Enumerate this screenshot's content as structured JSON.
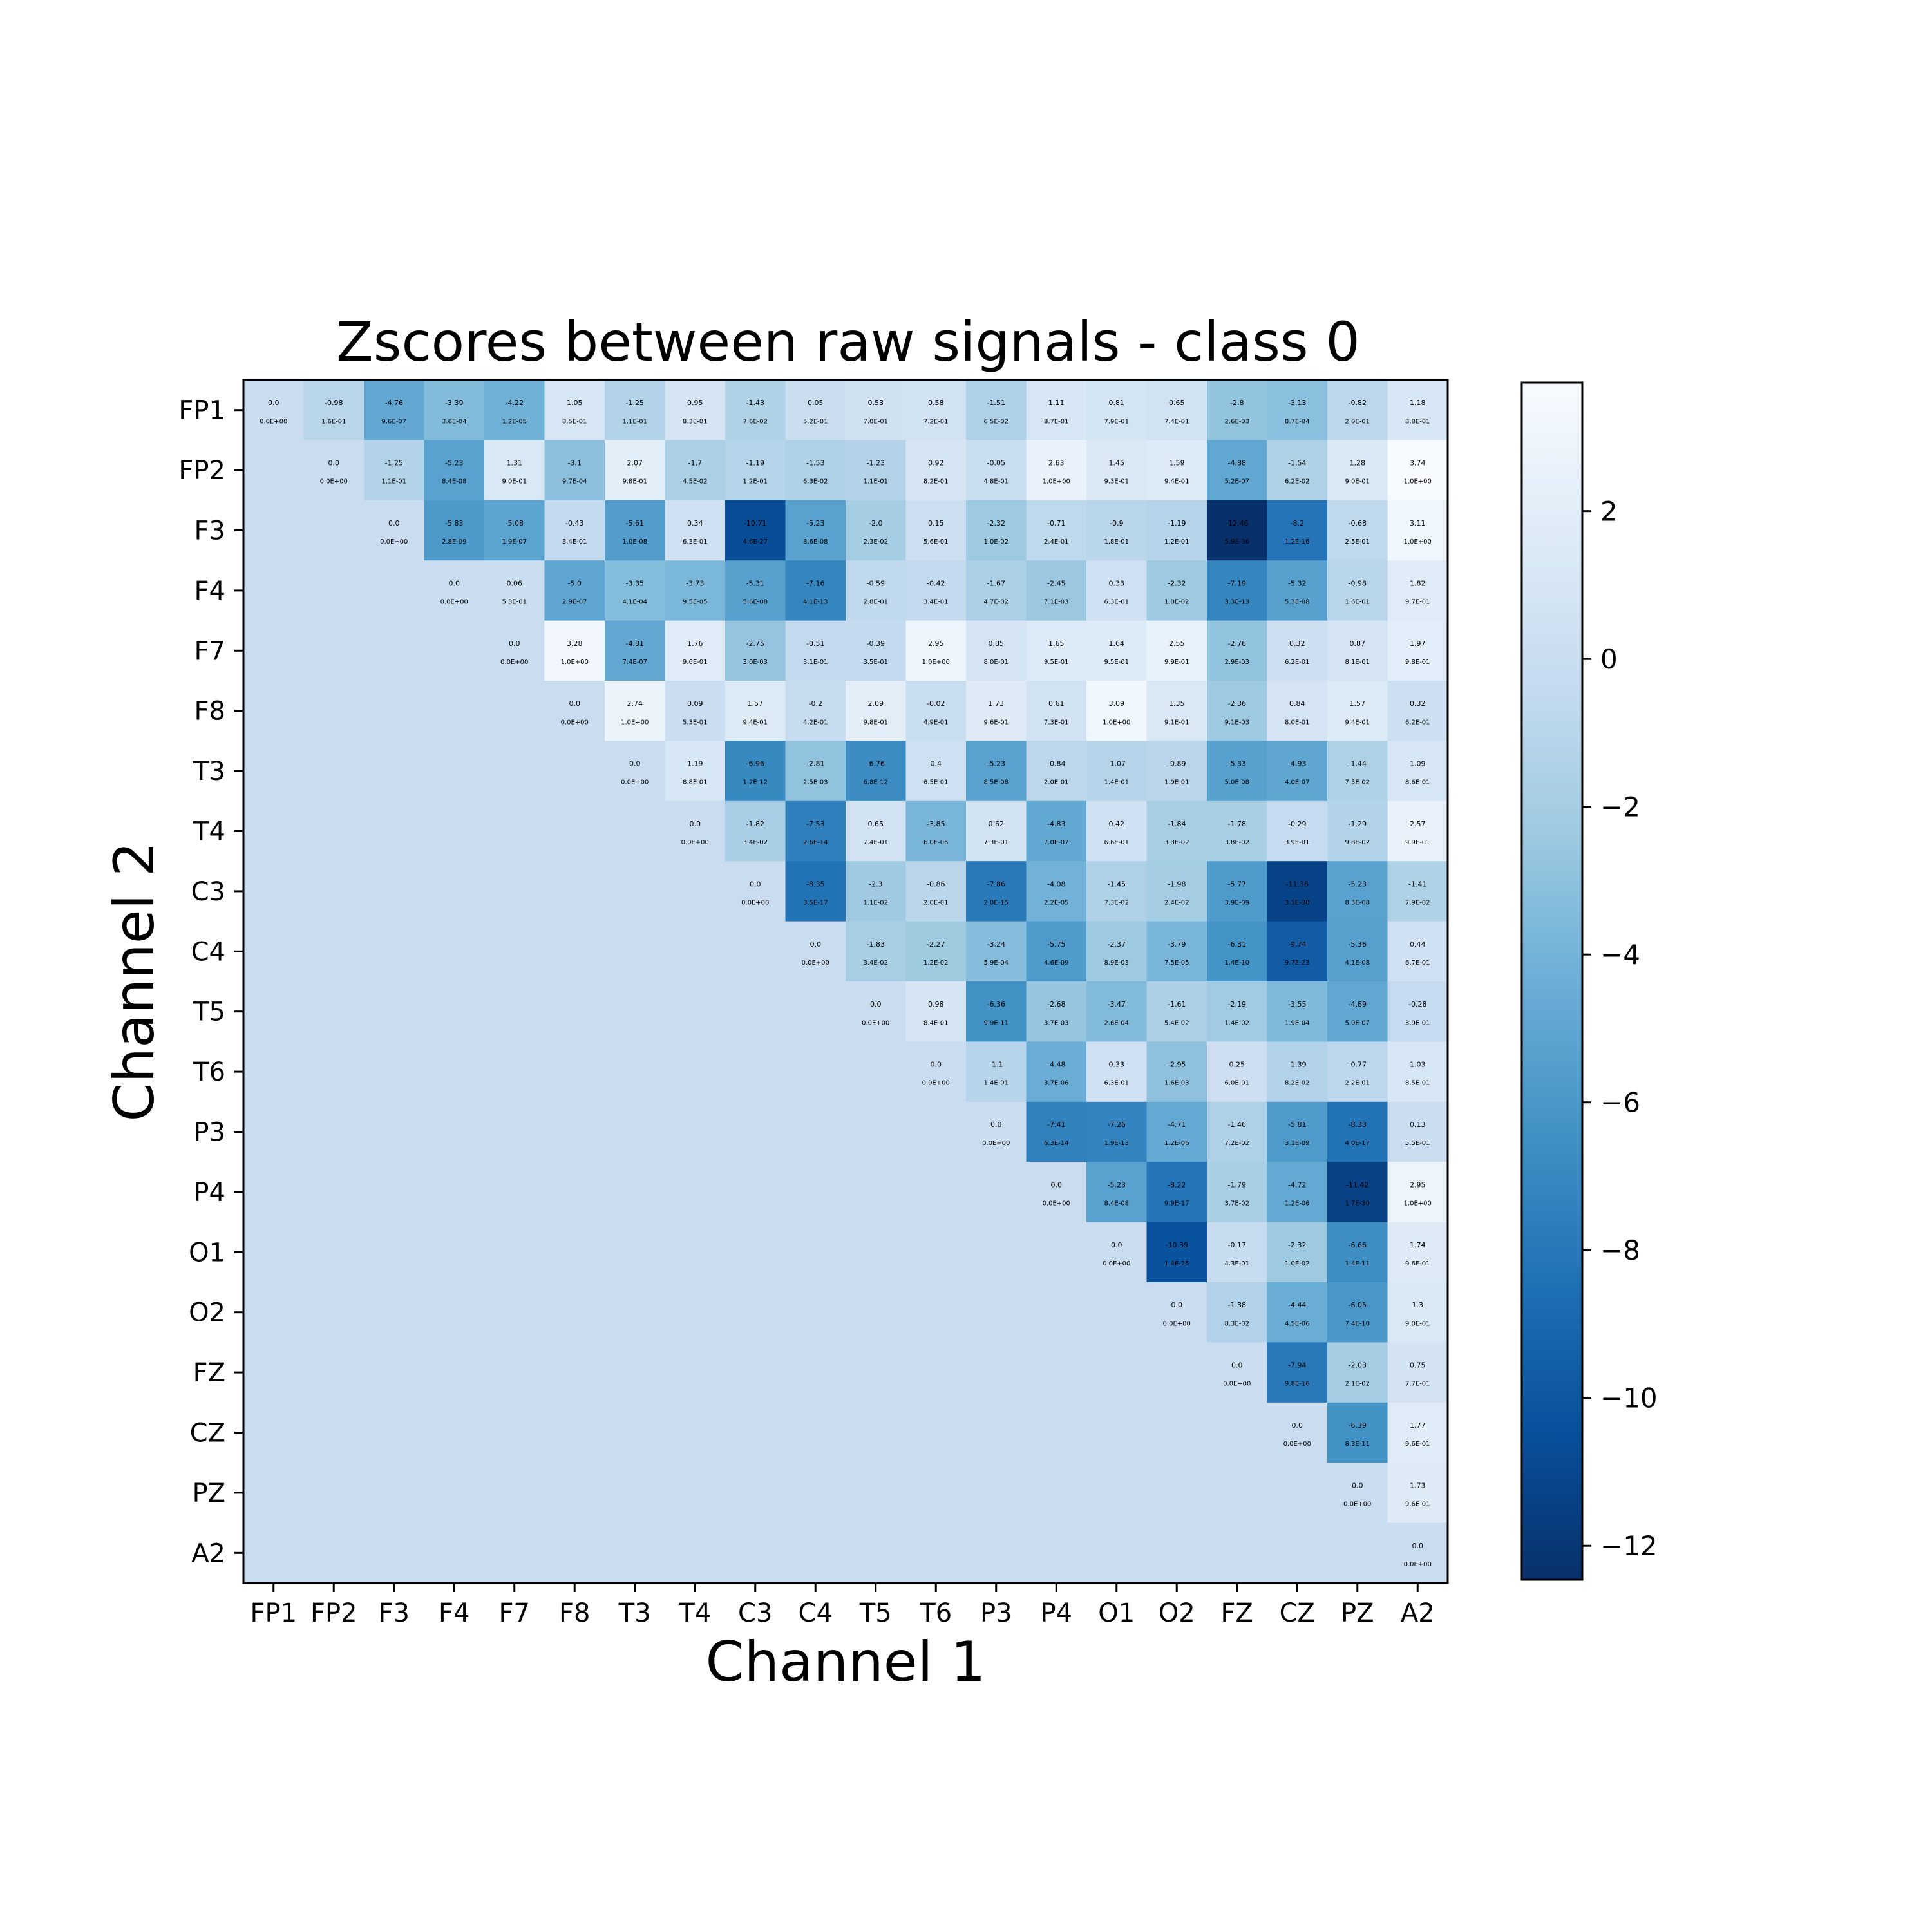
{
  "chart_data": {
    "type": "heatmap",
    "title": "Zscores between raw signals - class 0",
    "xlabel": "Channel 1",
    "ylabel": "Channel 2",
    "x_categories": [
      "FP1",
      "FP2",
      "F3",
      "F4",
      "F7",
      "F8",
      "T3",
      "T4",
      "C3",
      "C4",
      "T5",
      "T6",
      "P3",
      "P4",
      "O1",
      "O2",
      "FZ",
      "CZ",
      "PZ",
      "A2"
    ],
    "y_categories": [
      "FP1",
      "FP2",
      "F3",
      "F4",
      "F7",
      "F8",
      "T3",
      "T4",
      "C3",
      "C4",
      "T5",
      "T6",
      "P3",
      "P4",
      "O1",
      "O2",
      "FZ",
      "CZ",
      "PZ",
      "A2"
    ],
    "colormap": "Blues_r",
    "background_value": 0.0,
    "colorbar": {
      "vmin": -12.46,
      "vmax": 3.74,
      "ticks": [
        2,
        0,
        -2,
        -4,
        -6,
        -8,
        -10,
        -12
      ],
      "tick_labels": [
        "2",
        "0",
        "−2",
        "−4",
        "−6",
        "−8",
        "−10",
        "−12"
      ]
    },
    "zscores": [
      [
        "0.0",
        "-0.98",
        "-4.76",
        "-3.39",
        "-4.22",
        "1.05",
        "-1.25",
        "0.95",
        "-1.43",
        "0.05",
        "0.53",
        "0.58",
        "-1.51",
        "1.11",
        "0.81",
        "0.65",
        "-2.8",
        "-3.13",
        "-0.82",
        "1.18"
      ],
      [
        "0.0",
        "-1.25",
        "-5.23",
        "1.31",
        "-3.1",
        "2.07",
        "-1.7",
        "-1.19",
        "-1.53",
        "-1.23",
        "0.92",
        "-0.05",
        "2.63",
        "1.45",
        "1.59",
        "-4.88",
        "-1.54",
        "1.28",
        "3.74"
      ],
      [
        "0.0",
        "-5.83",
        "-5.08",
        "-0.43",
        "-5.61",
        "0.34",
        "-10.71",
        "-5.23",
        "-2.0",
        "0.15",
        "-2.32",
        "-0.71",
        "-0.9",
        "-1.19",
        "-12.46",
        "-8.2",
        "-0.68",
        "3.11"
      ],
      [
        "0.0",
        "0.06",
        "-5.0",
        "-3.35",
        "-3.73",
        "-5.31",
        "-7.16",
        "-0.59",
        "-0.42",
        "-1.67",
        "-2.45",
        "0.33",
        "-2.32",
        "-7.19",
        "-5.32",
        "-0.98",
        "1.82"
      ],
      [
        "0.0",
        "3.28",
        "-4.81",
        "1.76",
        "-2.75",
        "-0.51",
        "-0.39",
        "2.95",
        "0.85",
        "1.65",
        "1.64",
        "2.55",
        "-2.76",
        "0.32",
        "0.87",
        "1.97"
      ],
      [
        "0.0",
        "2.74",
        "0.09",
        "1.57",
        "-0.2",
        "2.09",
        "-0.02",
        "1.73",
        "0.61",
        "3.09",
        "1.35",
        "-2.36",
        "0.84",
        "1.57",
        "0.32"
      ],
      [
        "0.0",
        "1.19",
        "-6.96",
        "-2.81",
        "-6.76",
        "0.4",
        "-5.23",
        "-0.84",
        "-1.07",
        "-0.89",
        "-5.33",
        "-4.93",
        "-1.44",
        "1.09"
      ],
      [
        "0.0",
        "-1.82",
        "-7.53",
        "0.65",
        "-3.85",
        "0.62",
        "-4.83",
        "0.42",
        "-1.84",
        "-1.78",
        "-0.29",
        "-1.29",
        "2.57"
      ],
      [
        "0.0",
        "-8.35",
        "-2.3",
        "-0.86",
        "-7.86",
        "-4.08",
        "-1.45",
        "-1.98",
        "-5.77",
        "-11.36",
        "-5.23",
        "-1.41"
      ],
      [
        "0.0",
        "-1.83",
        "-2.27",
        "-3.24",
        "-5.75",
        "-2.37",
        "-3.79",
        "-6.31",
        "-9.74",
        "-5.36",
        "0.44"
      ],
      [
        "0.0",
        "0.98",
        "-6.36",
        "-2.68",
        "-3.47",
        "-1.61",
        "-2.19",
        "-3.55",
        "-4.89",
        "-0.28"
      ],
      [
        "0.0",
        "-1.1",
        "-4.48",
        "0.33",
        "-2.95",
        "0.25",
        "-1.39",
        "-0.77",
        "1.03"
      ],
      [
        "0.0",
        "-7.41",
        "-7.26",
        "-4.71",
        "-1.46",
        "-5.81",
        "-8.33",
        "0.13"
      ],
      [
        "0.0",
        "-5.23",
        "-8.22",
        "-1.79",
        "-4.72",
        "-11.42",
        "2.95"
      ],
      [
        "0.0",
        "-10.39",
        "-0.17",
        "-2.32",
        "-6.66",
        "1.74"
      ],
      [
        "0.0",
        "-1.38",
        "-4.44",
        "-6.05",
        "1.3"
      ],
      [
        "0.0",
        "-7.94",
        "-2.03",
        "0.75"
      ],
      [
        "0.0",
        "-6.39",
        "1.77"
      ],
      [
        "0.0",
        "1.73"
      ],
      [
        "0.0"
      ]
    ],
    "pvalues": [
      [
        "0.0E+00",
        "1.6E-01",
        "9.6E-07",
        "3.6E-04",
        "1.2E-05",
        "8.5E-01",
        "1.1E-01",
        "8.3E-01",
        "7.6E-02",
        "5.2E-01",
        "7.0E-01",
        "7.2E-01",
        "6.5E-02",
        "8.7E-01",
        "7.9E-01",
        "7.4E-01",
        "2.6E-03",
        "8.7E-04",
        "2.0E-01",
        "8.8E-01"
      ],
      [
        "0.0E+00",
        "1.1E-01",
        "8.4E-08",
        "9.0E-01",
        "9.7E-04",
        "9.8E-01",
        "4.5E-02",
        "1.2E-01",
        "6.3E-02",
        "1.1E-01",
        "8.2E-01",
        "4.8E-01",
        "1.0E+00",
        "9.3E-01",
        "9.4E-01",
        "5.2E-07",
        "6.2E-02",
        "9.0E-01",
        "1.0E+00"
      ],
      [
        "0.0E+00",
        "2.8E-09",
        "1.9E-07",
        "3.4E-01",
        "1.0E-08",
        "6.3E-01",
        "4.6E-27",
        "8.6E-08",
        "2.3E-02",
        "5.6E-01",
        "1.0E-02",
        "2.4E-01",
        "1.8E-01",
        "1.2E-01",
        "5.9E-36",
        "1.2E-16",
        "2.5E-01",
        "1.0E+00"
      ],
      [
        "0.0E+00",
        "5.3E-01",
        "2.9E-07",
        "4.1E-04",
        "9.5E-05",
        "5.6E-08",
        "4.1E-13",
        "2.8E-01",
        "3.4E-01",
        "4.7E-02",
        "7.1E-03",
        "6.3E-01",
        "1.0E-02",
        "3.3E-13",
        "5.3E-08",
        "1.6E-01",
        "9.7E-01"
      ],
      [
        "0.0E+00",
        "1.0E+00",
        "7.4E-07",
        "9.6E-01",
        "3.0E-03",
        "3.1E-01",
        "3.5E-01",
        "1.0E+00",
        "8.0E-01",
        "9.5E-01",
        "9.5E-01",
        "9.9E-01",
        "2.9E-03",
        "6.2E-01",
        "8.1E-01",
        "9.8E-01"
      ],
      [
        "0.0E+00",
        "1.0E+00",
        "5.3E-01",
        "9.4E-01",
        "4.2E-01",
        "9.8E-01",
        "4.9E-01",
        "9.6E-01",
        "7.3E-01",
        "1.0E+00",
        "9.1E-01",
        "9.1E-03",
        "8.0E-01",
        "9.4E-01",
        "6.2E-01"
      ],
      [
        "0.0E+00",
        "8.8E-01",
        "1.7E-12",
        "2.5E-03",
        "6.8E-12",
        "6.5E-01",
        "8.5E-08",
        "2.0E-01",
        "1.4E-01",
        "1.9E-01",
        "5.0E-08",
        "4.0E-07",
        "7.5E-02",
        "8.6E-01"
      ],
      [
        "0.0E+00",
        "3.4E-02",
        "2.6E-14",
        "7.4E-01",
        "6.0E-05",
        "7.3E-01",
        "7.0E-07",
        "6.6E-01",
        "3.3E-02",
        "3.8E-02",
        "3.9E-01",
        "9.8E-02",
        "9.9E-01"
      ],
      [
        "0.0E+00",
        "3.5E-17",
        "1.1E-02",
        "2.0E-01",
        "2.0E-15",
        "2.2E-05",
        "7.3E-02",
        "2.4E-02",
        "3.9E-09",
        "3.1E-30",
        "8.5E-08",
        "7.9E-02"
      ],
      [
        "0.0E+00",
        "3.4E-02",
        "1.2E-02",
        "5.9E-04",
        "4.6E-09",
        "8.9E-03",
        "7.5E-05",
        "1.4E-10",
        "9.7E-23",
        "4.1E-08",
        "6.7E-01"
      ],
      [
        "0.0E+00",
        "8.4E-01",
        "9.9E-11",
        "3.7E-03",
        "2.6E-04",
        "5.4E-02",
        "1.4E-02",
        "1.9E-04",
        "5.0E-07",
        "3.9E-01"
      ],
      [
        "0.0E+00",
        "1.4E-01",
        "3.7E-06",
        "6.3E-01",
        "1.6E-03",
        "6.0E-01",
        "8.2E-02",
        "2.2E-01",
        "8.5E-01"
      ],
      [
        "0.0E+00",
        "6.3E-14",
        "1.9E-13",
        "1.2E-06",
        "7.2E-02",
        "3.1E-09",
        "4.0E-17",
        "5.5E-01"
      ],
      [
        "0.0E+00",
        "8.4E-08",
        "9.9E-17",
        "3.7E-02",
        "1.2E-06",
        "1.7E-30",
        "1.0E+00"
      ],
      [
        "0.0E+00",
        "1.4E-25",
        "4.3E-01",
        "1.0E-02",
        "1.4E-11",
        "9.6E-01"
      ],
      [
        "0.0E+00",
        "8.3E-02",
        "4.5E-06",
        "7.4E-10",
        "9.0E-01"
      ],
      [
        "0.0E+00",
        "9.8E-16",
        "2.1E-02",
        "7.7E-01"
      ],
      [
        "0.0E+00",
        "8.3E-11",
        "9.6E-01"
      ],
      [
        "0.0E+00",
        "9.6E-01"
      ],
      [
        "0.0E+00"
      ]
    ]
  }
}
